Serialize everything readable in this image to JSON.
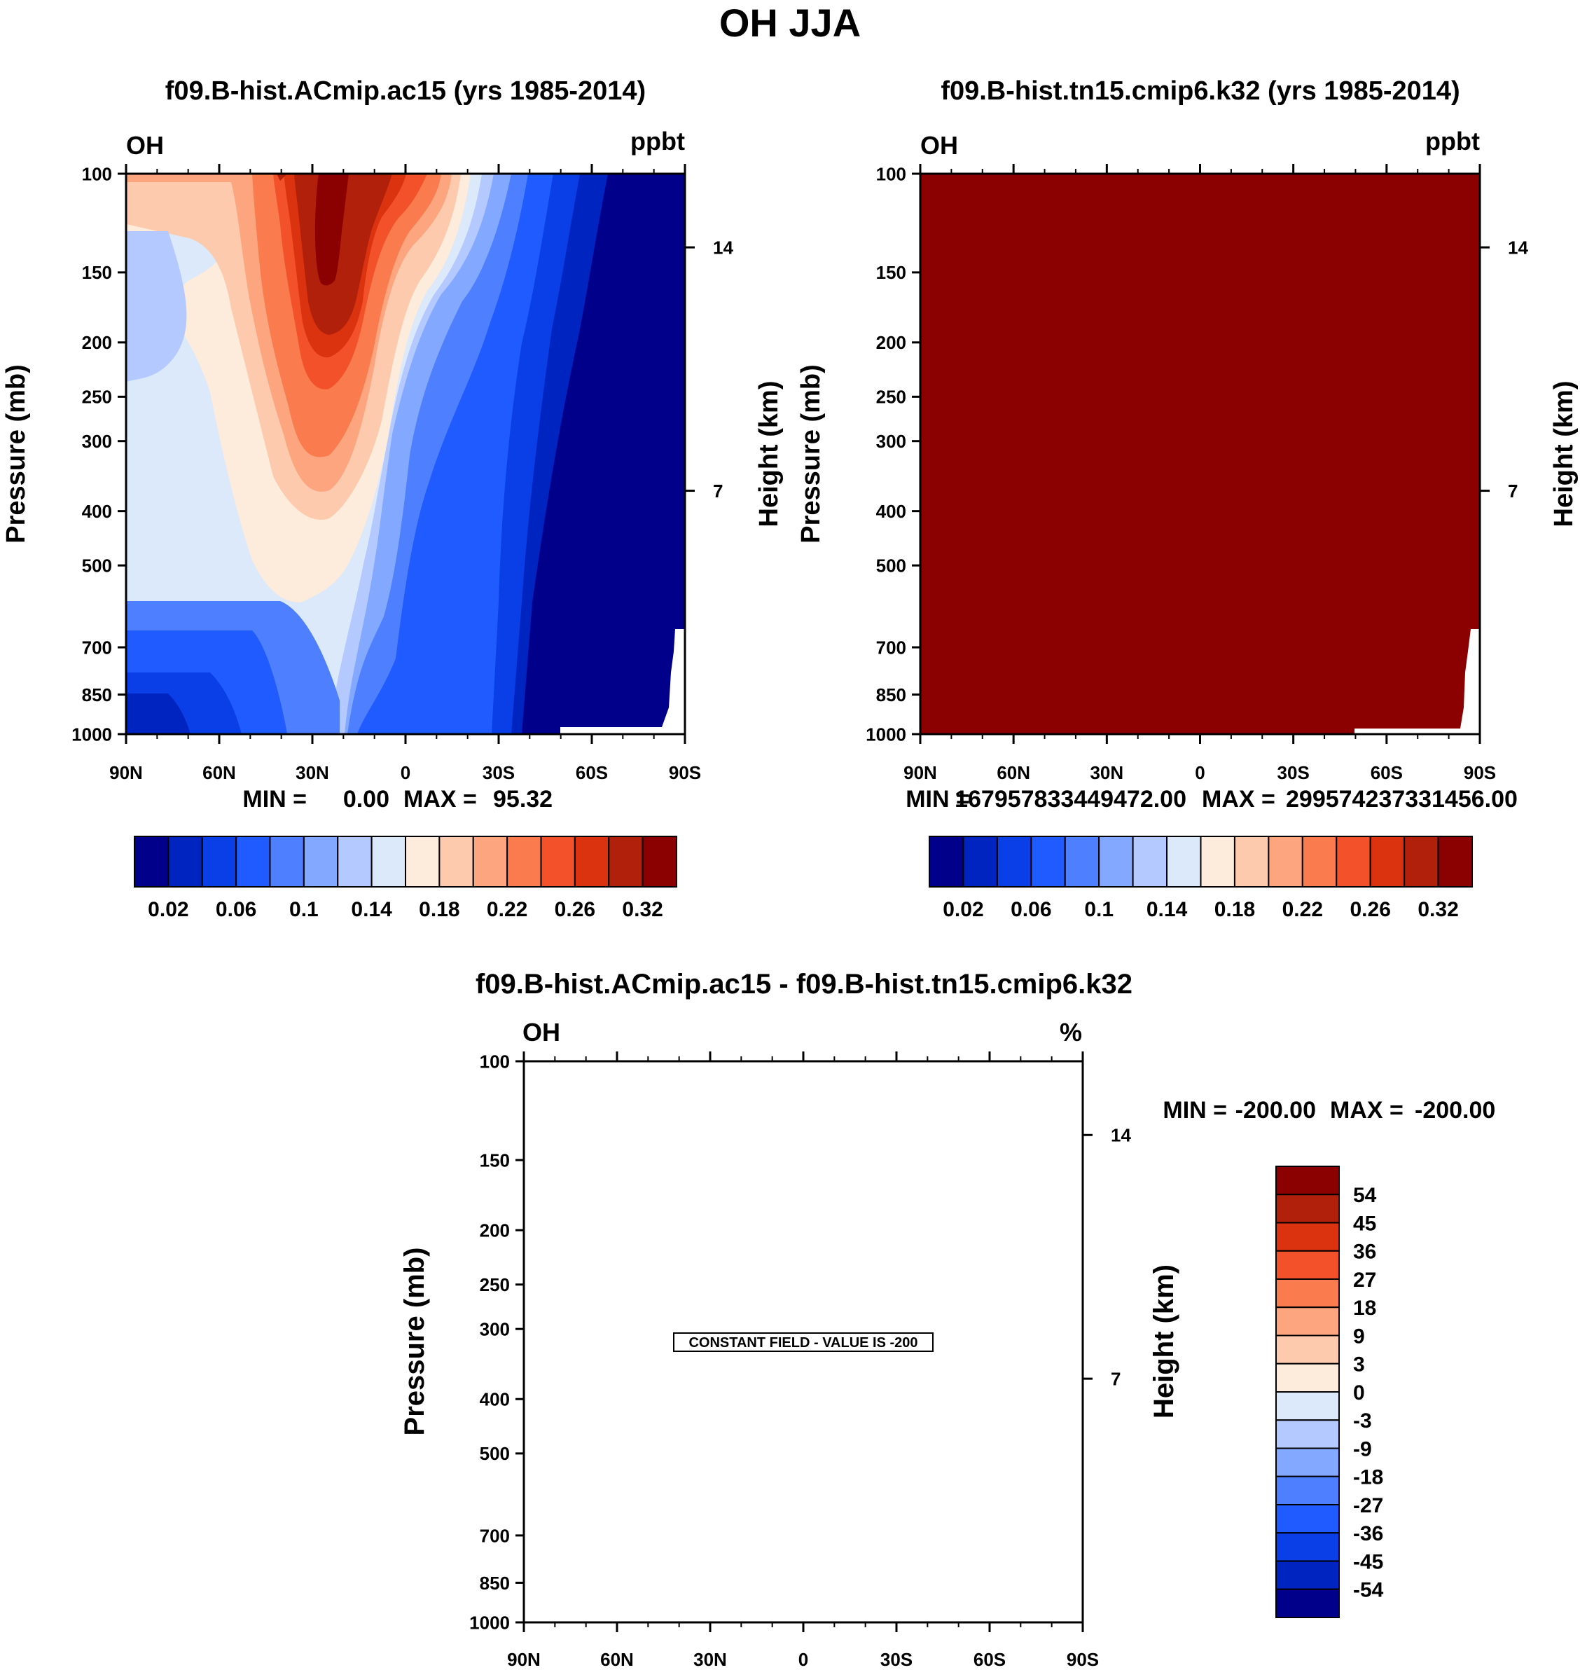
{
  "page": {
    "title": "OH JJA"
  },
  "colors": {
    "ppbt_scale": [
      "#00008b",
      "#0024c0",
      "#0a3ee6",
      "#1f5bff",
      "#4d7fff",
      "#82a8ff",
      "#b3c9ff",
      "#dbe9fb",
      "#fdebdc",
      "#fdcaae",
      "#fca57f",
      "#fa7b4e",
      "#f2512a",
      "#db3210",
      "#b0200a",
      "#8b0000"
    ],
    "pct_scale": [
      "#8b0000",
      "#b0200a",
      "#db3210",
      "#f2512a",
      "#fa7b4e",
      "#fca57f",
      "#fdcaae",
      "#fdebdc",
      "#dbe9fb",
      "#b3c9ff",
      "#82a8ff",
      "#4d7fff",
      "#1f5bff",
      "#0a3ee6",
      "#0024c0",
      "#00008b"
    ]
  },
  "chart_data": [
    {
      "type": "contour",
      "panel": "top-left",
      "title": "f09.B-hist.ACmip.ac15 (yrs 1985-2014)",
      "variable": "OH",
      "units": "ppbt",
      "xlabel": "",
      "ylabel": "Pressure (mb)",
      "ylabel_right": "Height (km)",
      "x_ticks": [
        "90N",
        "60N",
        "30N",
        "0",
        "30S",
        "60S",
        "90S"
      ],
      "y_ticks": [
        "100",
        "150",
        "200",
        "250",
        "300",
        "400",
        "500",
        "700",
        "850",
        "1000"
      ],
      "y_right_ticks": [
        "14",
        "7"
      ],
      "ylim": [
        1000,
        100
      ],
      "stats": {
        "min_label": "MIN =",
        "min": "0.00",
        "max_label": "MAX =",
        "max": "95.32"
      },
      "colorbar": {
        "orientation": "horizontal",
        "labels": [
          "0.02",
          "0.06",
          "0.1",
          "0.14",
          "0.18",
          "0.22",
          "0.26",
          "0.32"
        ]
      }
    },
    {
      "type": "contour",
      "panel": "top-right",
      "title": "f09.B-hist.tn15.cmip6.k32 (yrs 1985-2014)",
      "variable": "OH",
      "units": "ppbt",
      "xlabel": "",
      "ylabel": "Pressure (mb)",
      "ylabel_right": "Height (km)",
      "x_ticks": [
        "90N",
        "60N",
        "30N",
        "0",
        "30S",
        "60S",
        "90S"
      ],
      "y_ticks": [
        "100",
        "150",
        "200",
        "250",
        "300",
        "400",
        "500",
        "700",
        "850",
        "1000"
      ],
      "y_right_ticks": [
        "14",
        "7"
      ],
      "ylim": [
        1000,
        100
      ],
      "stats": {
        "min_label": "MIN =",
        "min": "167957833449472.00",
        "max_label": "MAX =",
        "max": "299574237331456.00"
      },
      "colorbar": {
        "orientation": "horizontal",
        "labels": [
          "0.02",
          "0.06",
          "0.1",
          "0.14",
          "0.18",
          "0.22",
          "0.26",
          "0.32"
        ]
      }
    },
    {
      "type": "contour",
      "panel": "bottom",
      "title": "f09.B-hist.ACmip.ac15 - f09.B-hist.tn15.cmip6.k32",
      "variable": "OH",
      "units": "%",
      "xlabel": "",
      "ylabel": "Pressure (mb)",
      "ylabel_right": "Height (km)",
      "x_ticks": [
        "90N",
        "60N",
        "30N",
        "0",
        "30S",
        "60S",
        "90S"
      ],
      "y_ticks": [
        "100",
        "150",
        "200",
        "250",
        "300",
        "400",
        "500",
        "700",
        "850",
        "1000"
      ],
      "y_right_ticks": [
        "14",
        "7"
      ],
      "ylim": [
        1000,
        100
      ],
      "stats": {
        "min_label": "MIN =",
        "min": "-200.00",
        "max_label": "MAX =",
        "max": "-200.00"
      },
      "annotation": "CONSTANT FIELD - VALUE IS -200",
      "colorbar": {
        "orientation": "vertical",
        "labels": [
          "54",
          "45",
          "36",
          "27",
          "18",
          "9",
          "3",
          "0",
          "-3",
          "-9",
          "-18",
          "-27",
          "-36",
          "-45",
          "-54"
        ]
      }
    }
  ]
}
